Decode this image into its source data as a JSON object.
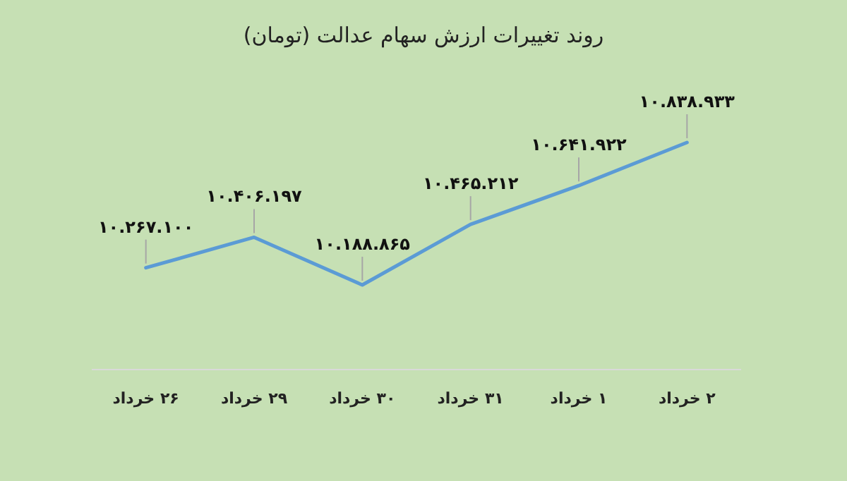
{
  "chart_data": {
    "type": "line",
    "title": "روند تغییرات ارزش سهام عدالت (تومان)",
    "categories": [
      "۲۶ خرداد",
      "۲۹ خرداد",
      "۳۰ خرداد",
      "۳۱ خرداد",
      "۱ خرداد",
      "۲ خرداد"
    ],
    "series": [
      {
        "color": "#5b9bd5",
        "values": [
          10267100,
          10406197,
          10188865,
          10465212,
          10641922,
          10838933
        ],
        "value_labels": [
          "۱۰.۲۶۷.۱۰۰",
          "۱۰.۴۰۶.۱۹۷",
          "۱۰.۱۸۸.۸۶۵",
          "۱۰.۴۶۵.۲۱۲",
          "۱۰.۶۴۱.۹۲۲",
          "۱۰.۸۳۸.۹۳۳"
        ]
      }
    ],
    "marker": "none",
    "line_style": "solid"
  }
}
